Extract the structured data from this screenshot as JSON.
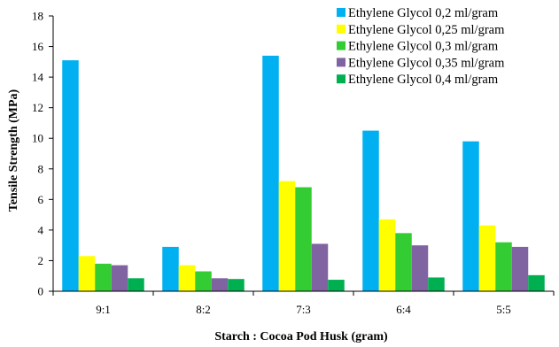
{
  "chart_data": {
    "type": "bar",
    "title": "",
    "xlabel": "Starch : Cocoa Pod Husk (gram)",
    "ylabel": "Tensile Strength (MPa)",
    "ylim": [
      0,
      18
    ],
    "yticks": [
      "0",
      "2",
      "4",
      "6",
      "8",
      "10",
      "12",
      "14",
      "16",
      "18"
    ],
    "grid": false,
    "legend_position": "top-right",
    "categories": [
      "9:1",
      "8:2",
      "7:3",
      "6:4",
      "5:5"
    ],
    "series": [
      {
        "name": "Ethylene Glycol 0,2 ml/gram",
        "color": "#00b0f0",
        "values": [
          15.1,
          2.9,
          15.4,
          10.5,
          9.8
        ]
      },
      {
        "name": "Ethylene Glycol 0,25 ml/gram",
        "color": "#ffff00",
        "values": [
          2.3,
          1.7,
          7.2,
          4.7,
          4.3
        ]
      },
      {
        "name": "Ethylene Glycol 0,3 ml/gram",
        "color": "#33cc33",
        "values": [
          1.8,
          1.3,
          6.8,
          3.8,
          3.2
        ]
      },
      {
        "name": "Ethylene Glycol 0,35 ml/gram",
        "color": "#8064a2",
        "values": [
          1.7,
          0.85,
          3.1,
          3.0,
          2.9
        ]
      },
      {
        "name": "Ethylene Glycol 0,4 ml/gram",
        "color": "#00b050",
        "values": [
          0.85,
          0.8,
          0.75,
          0.9,
          1.05
        ]
      }
    ]
  }
}
